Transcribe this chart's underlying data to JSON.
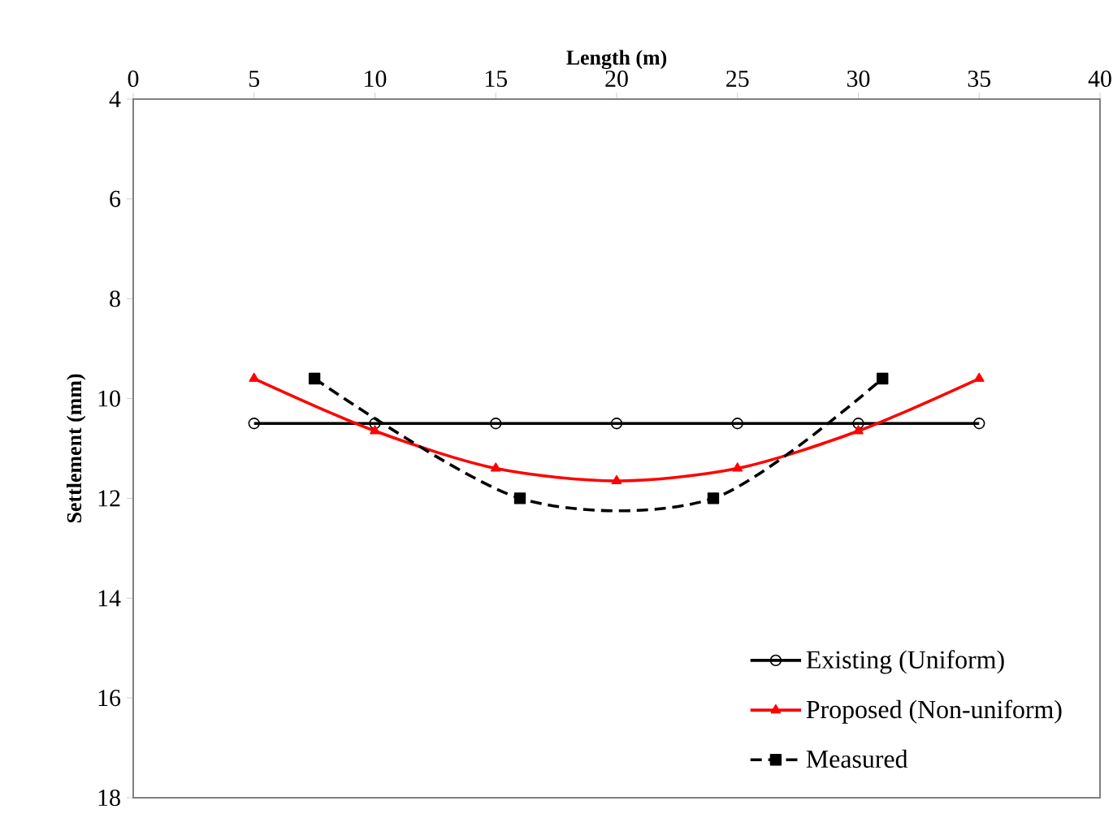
{
  "chart_data": {
    "type": "line",
    "xlabel": "Length (m)",
    "ylabel": "Settlement (mm)",
    "xlim": [
      0,
      40
    ],
    "xticks": [
      0,
      5,
      10,
      15,
      20,
      25,
      30,
      35,
      40
    ],
    "ylim": [
      18,
      4
    ],
    "yticks": [
      4,
      6,
      8,
      10,
      12,
      14,
      16,
      18
    ],
    "grid": false,
    "legend": "bottom right",
    "series": [
      {
        "name": "Existing (Uniform)",
        "color": "#000000",
        "marker": "circle",
        "line_style": "solid",
        "x": [
          5,
          10,
          15,
          20,
          25,
          30,
          35
        ],
        "values": [
          10.5,
          10.5,
          10.5,
          10.5,
          10.5,
          10.5,
          10.5
        ]
      },
      {
        "name": "Proposed (Non-uniform)",
        "color": "#ff0000",
        "marker": "triangle",
        "line_style": "solid",
        "x": [
          5,
          10,
          15,
          20,
          25,
          30,
          35
        ],
        "values": [
          9.6,
          10.65,
          11.4,
          11.65,
          11.4,
          10.65,
          9.6
        ]
      },
      {
        "name": "Measured",
        "color": "#000000",
        "marker": "square",
        "line_style": "dashed",
        "x": [
          7.5,
          16,
          24,
          31
        ],
        "values": [
          9.6,
          12.0,
          12.0,
          9.6
        ]
      }
    ]
  }
}
